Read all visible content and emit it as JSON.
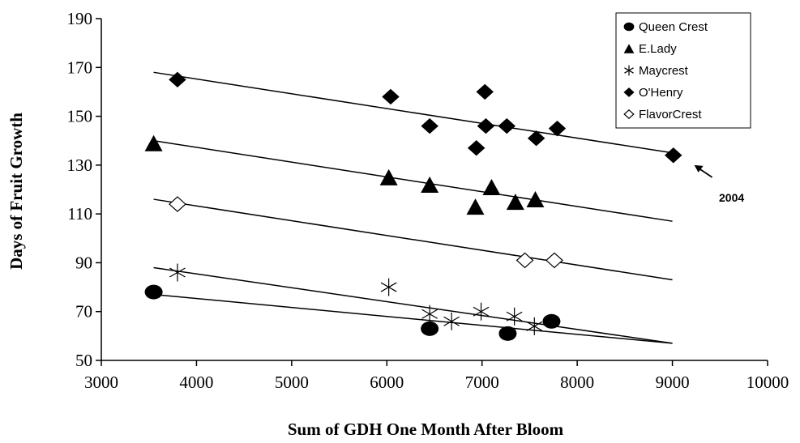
{
  "chart_data": {
    "type": "scatter",
    "title": "",
    "xlabel": "Sum of GDH One Month After Bloom",
    "ylabel": "Days of Fruit Growth",
    "xlim": [
      3000,
      10000
    ],
    "ylim": [
      50,
      190
    ],
    "xticks": [
      3000,
      4000,
      5000,
      6000,
      7000,
      8000,
      9000,
      10000
    ],
    "yticks": [
      50,
      70,
      90,
      110,
      130,
      150,
      170,
      190
    ],
    "grid": false,
    "legend_position": "top-right",
    "series": [
      {
        "name": "Queen Crest",
        "marker": "filled-circle",
        "points": [
          [
            3550,
            78
          ],
          [
            6450,
            63
          ],
          [
            7270,
            61
          ],
          [
            7730,
            66
          ]
        ],
        "trendline": [
          [
            3550,
            77
          ],
          [
            9000,
            57
          ]
        ]
      },
      {
        "name": "E.Lady",
        "marker": "filled-triangle",
        "points": [
          [
            3550,
            139
          ],
          [
            6020,
            125
          ],
          [
            6450,
            122
          ],
          [
            6930,
            113
          ],
          [
            7100,
            121
          ],
          [
            7350,
            115
          ],
          [
            7560,
            116
          ]
        ],
        "trendline": [
          [
            3550,
            140
          ],
          [
            9000,
            107
          ]
        ]
      },
      {
        "name": "Maycrest",
        "marker": "asterisk",
        "points": [
          [
            3800,
            86
          ],
          [
            6020,
            80
          ],
          [
            6450,
            69
          ],
          [
            6680,
            66
          ],
          [
            6990,
            70
          ],
          [
            7340,
            68
          ],
          [
            7550,
            64
          ]
        ],
        "trendline": [
          [
            3550,
            88
          ],
          [
            9000,
            57
          ]
        ]
      },
      {
        "name": "O'Henry",
        "marker": "filled-diamond",
        "points": [
          [
            3800,
            165
          ],
          [
            6040,
            158
          ],
          [
            6450,
            146
          ],
          [
            6940,
            137
          ],
          [
            7030,
            160
          ],
          [
            7040,
            146
          ],
          [
            7260,
            146
          ],
          [
            7570,
            141
          ],
          [
            7790,
            145
          ],
          [
            9010,
            134
          ]
        ],
        "trendline": [
          [
            3550,
            168
          ],
          [
            9000,
            135
          ]
        ]
      },
      {
        "name": "FlavorCrest",
        "marker": "open-diamond",
        "points": [
          [
            3800,
            114
          ],
          [
            7450,
            91
          ],
          [
            7760,
            91
          ]
        ],
        "trendline": [
          [
            3550,
            116
          ],
          [
            9000,
            83
          ]
        ]
      }
    ],
    "annotations": [
      {
        "text": "2004",
        "arrow_to": [
          9230,
          130
        ]
      }
    ]
  }
}
